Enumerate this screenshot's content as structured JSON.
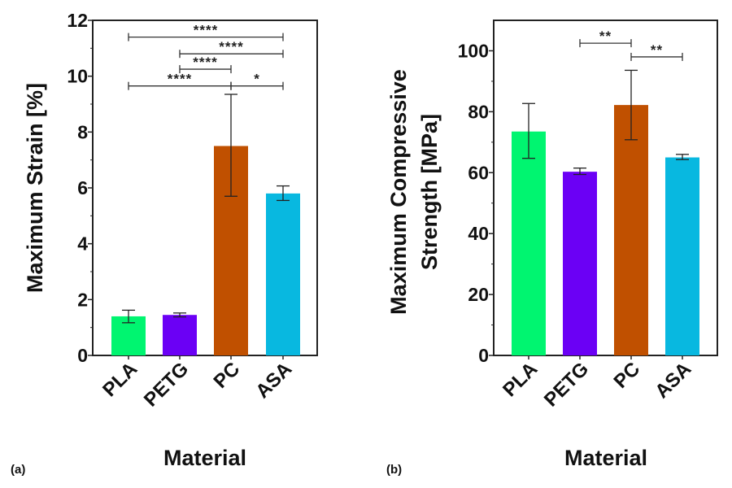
{
  "chart_data": [
    {
      "type": "bar",
      "panel_label": "(a)",
      "title": "",
      "xlabel": "Material",
      "ylabel": "Maximum Strain [%]",
      "ylim": [
        0,
        12
      ],
      "yticks": [
        0,
        2,
        4,
        6,
        8,
        10,
        12
      ],
      "categories": [
        "PLA",
        "PETG",
        "PC",
        "ASA"
      ],
      "values": [
        1.4,
        1.45,
        7.5,
        5.8
      ],
      "error_low": [
        1.17,
        1.38,
        5.7,
        5.55
      ],
      "error_high": [
        1.62,
        1.52,
        9.35,
        6.07
      ],
      "colors": [
        "#00f570",
        "#6b00f5",
        "#c05000",
        "#08b8e0"
      ],
      "significance": [
        {
          "from": 0,
          "to": 3,
          "y": 11.4,
          "label": "****"
        },
        {
          "from": 1,
          "to": 3,
          "y": 10.8,
          "label": "****"
        },
        {
          "from": 1,
          "to": 2,
          "y": 10.25,
          "label": "****"
        },
        {
          "from": 0,
          "to": 2,
          "y": 9.65,
          "label": "****"
        },
        {
          "from": 2,
          "to": 3,
          "y": 9.65,
          "label": "*"
        }
      ],
      "grid": false,
      "legend": "none"
    },
    {
      "type": "bar",
      "panel_label": "(b)",
      "title": "",
      "xlabel": "Material",
      "ylabel": "Maximum Compressive Strength [MPa]",
      "ylabel_lines": [
        "Maximum Compressive",
        "Strength [MPa]"
      ],
      "ylim": [
        0,
        110
      ],
      "yticks": [
        0,
        20,
        40,
        60,
        80,
        100
      ],
      "categories": [
        "PLA",
        "PETG",
        "PC",
        "ASA"
      ],
      "values": [
        73.5,
        60.3,
        82.2,
        65.0
      ],
      "error_low": [
        64.7,
        59.4,
        70.8,
        64.3
      ],
      "error_high": [
        82.7,
        61.5,
        93.6,
        66.0
      ],
      "colors": [
        "#00f570",
        "#6b00f5",
        "#c05000",
        "#08b8e0"
      ],
      "significance": [
        {
          "from": 1,
          "to": 2,
          "y": 102.5,
          "label": "**"
        },
        {
          "from": 2,
          "to": 3,
          "y": 98.0,
          "label": "**"
        }
      ],
      "grid": false,
      "legend": "none"
    }
  ]
}
